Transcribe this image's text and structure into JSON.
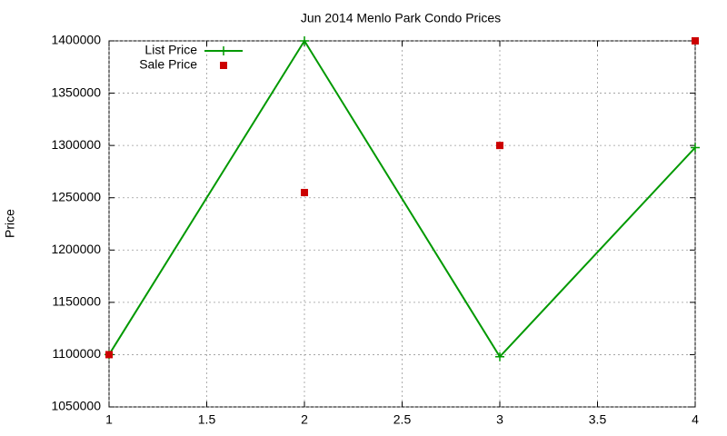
{
  "chart_data": {
    "type": "line",
    "title": "Jun 2014 Menlo Park Condo Prices",
    "y_label": "Price",
    "x": [
      1,
      2,
      3,
      4
    ],
    "series": [
      {
        "name": "List Price",
        "color": "#009900",
        "style": "linespoints",
        "values": [
          1100000,
          1400000,
          1098000,
          1298000
        ]
      },
      {
        "name": "Sale Price",
        "color": "#cc0000",
        "style": "points",
        "values": [
          1100000,
          1255000,
          1300000,
          1400000
        ]
      }
    ],
    "xlim": [
      1,
      4
    ],
    "xticks": [
      1,
      1.5,
      2,
      2.5,
      3,
      3.5,
      4
    ],
    "ylim": [
      1050000,
      1400000
    ],
    "yticks": [
      1050000,
      1100000,
      1150000,
      1200000,
      1250000,
      1300000,
      1350000,
      1400000
    ],
    "grid": true,
    "legend": "top-left"
  }
}
